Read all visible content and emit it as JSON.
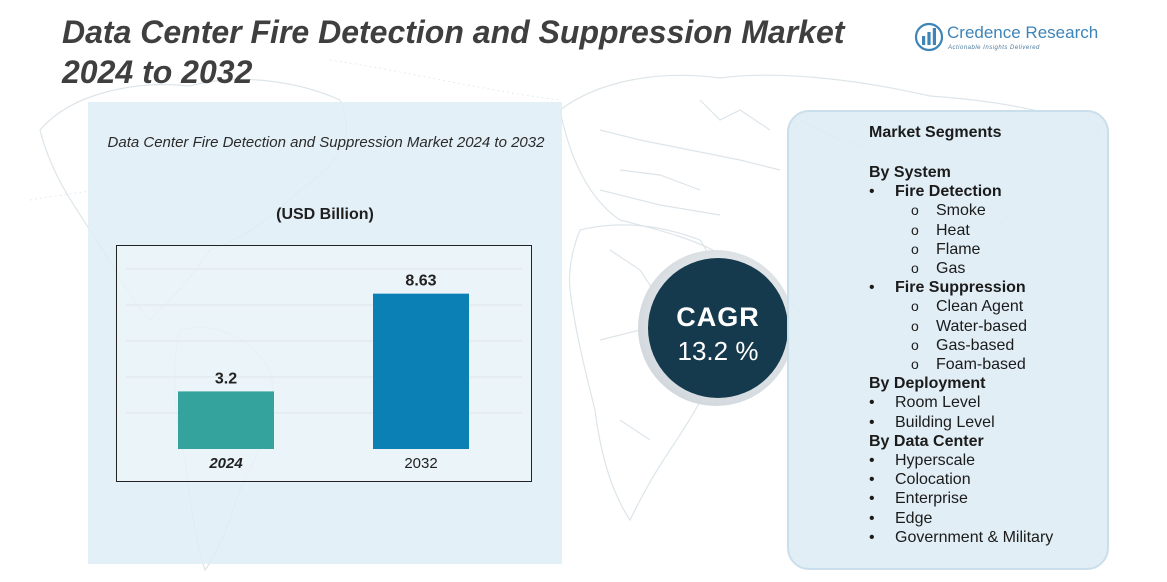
{
  "page": {
    "title": "Data Center Fire Detection and Suppression Market 2024 to 2032"
  },
  "brand": {
    "name": "Credence Research",
    "tagline": "Actionable Insights Delivered",
    "icon": "bar-chart-logo-icon",
    "color": "#3d84b8"
  },
  "chart_data": {
    "type": "bar",
    "title": "Data Center Fire Detection and Suppression Market 2024 to 2032",
    "unit_label": "(USD Billion)",
    "categories": [
      "2024",
      "2032"
    ],
    "values": [
      3.2,
      8.63
    ],
    "value_labels": [
      "3.2",
      "8.63"
    ],
    "bar_colors": [
      "#34a39e",
      "#0a80b4"
    ],
    "ylim": [
      0,
      10
    ],
    "grid": true,
    "legend": "none"
  },
  "cagr": {
    "label": "CAGR",
    "value": "13.2 %",
    "color": "#163a4d"
  },
  "segments": {
    "heading": "Market Segments",
    "groups": [
      {
        "title": "By System",
        "items": [
          {
            "label": "Fire Detection",
            "subitems": [
              "Smoke",
              "Heat",
              "Flame",
              "Gas"
            ]
          },
          {
            "label": "Fire Suppression",
            "subitems": [
              "Clean Agent",
              "Water-based",
              "Gas-based",
              "Foam-based"
            ]
          }
        ]
      },
      {
        "title": "By Deployment",
        "items": [
          {
            "label": "Room Level"
          },
          {
            "label": "Building Level"
          }
        ]
      },
      {
        "title": "By Data Center",
        "items": [
          {
            "label": "Hyperscale"
          },
          {
            "label": "Colocation"
          },
          {
            "label": "Enterprise"
          },
          {
            "label": "Edge"
          },
          {
            "label": "Government & Military"
          }
        ]
      }
    ]
  }
}
